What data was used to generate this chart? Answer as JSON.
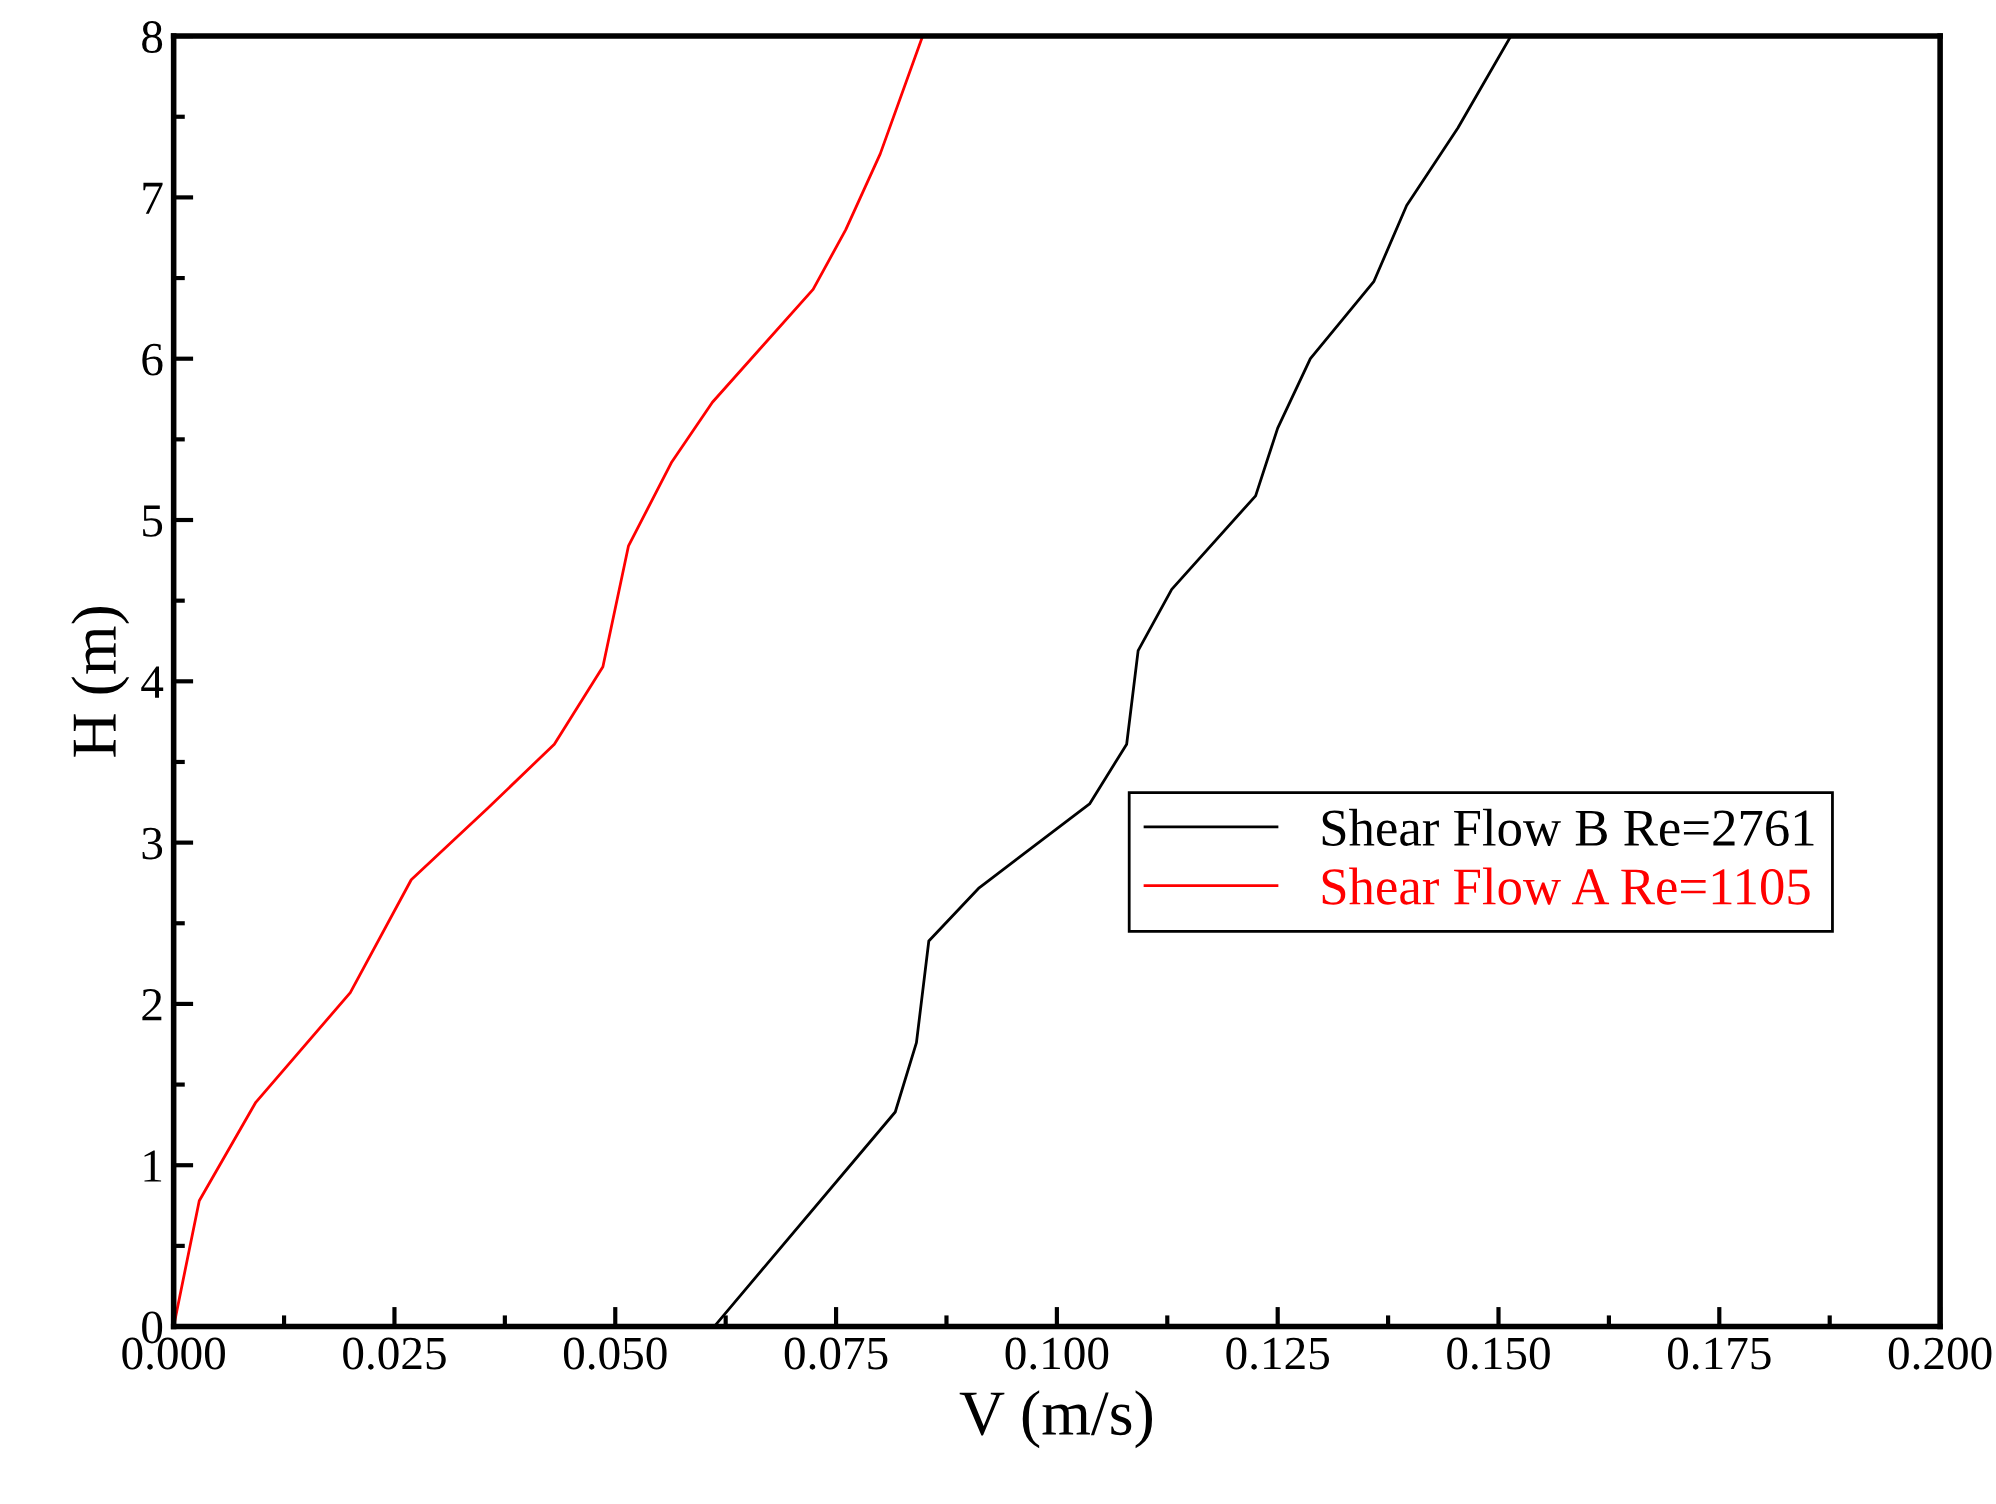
{
  "chart_data": {
    "type": "line",
    "xlabel": "V (m/s)",
    "ylabel": "H (m)",
    "xlim": [
      0,
      0.2
    ],
    "ylim": [
      0,
      8
    ],
    "xticks": [
      {
        "value": 0,
        "label": "0.000"
      },
      {
        "value": 0.025,
        "label": "0.025"
      },
      {
        "value": 0.05,
        "label": "0.050"
      },
      {
        "value": 0.075,
        "label": "0.075"
      },
      {
        "value": 0.1,
        "label": "0.100"
      },
      {
        "value": 0.125,
        "label": "0.125"
      },
      {
        "value": 0.15,
        "label": "0.150"
      },
      {
        "value": 0.175,
        "label": "0.175"
      },
      {
        "value": 0.2,
        "label": "0.200"
      }
    ],
    "yticks": [
      0,
      1,
      2,
      3,
      4,
      5,
      6,
      7,
      8
    ],
    "grid": false,
    "legend": "right",
    "line_style": "solid",
    "series": [
      {
        "name": "Shear Flow B Re=2761",
        "color": "#000000",
        "x": [
          0.0612,
          0.0817,
          0.0841,
          0.0855,
          0.0912,
          0.1037,
          0.1079,
          0.1092,
          0.113,
          0.1225,
          0.125,
          0.1287,
          0.1359,
          0.1396,
          0.1454,
          0.1514
        ],
        "values": [
          0,
          1.33,
          1.76,
          2.39,
          2.72,
          3.24,
          3.61,
          4.19,
          4.57,
          5.15,
          5.57,
          6.0,
          6.48,
          6.95,
          7.43,
          8.0
        ]
      },
      {
        "name": "Shear Flow A Re=1105",
        "color": "#ff0000",
        "x": [
          0,
          0.0029,
          0.0093,
          0.02,
          0.0269,
          0.0355,
          0.0431,
          0.0486,
          0.0515,
          0.0564,
          0.061,
          0.0724,
          0.0761,
          0.08,
          0.0848
        ],
        "values": [
          0,
          0.78,
          1.39,
          2.07,
          2.77,
          3.21,
          3.61,
          4.09,
          4.84,
          5.36,
          5.73,
          6.43,
          6.8,
          7.27,
          8.0
        ]
      }
    ]
  }
}
